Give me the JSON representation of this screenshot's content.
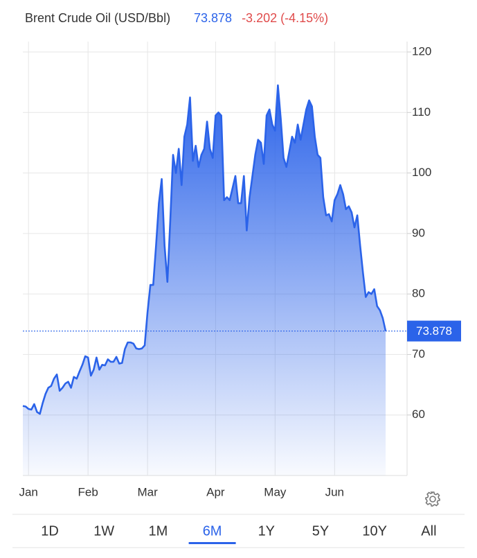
{
  "chart_data": {
    "type": "line",
    "title": "Brent Crude Oil (USD/Bbl)",
    "last_value": 73.878,
    "last_label": "73.878",
    "change": "-3.202 (-4.15%)",
    "color": "#2b63e9",
    "values": [
      61.5,
      61.4,
      61,
      60.9,
      61.8,
      60.5,
      60.2,
      62,
      63.5,
      64.5,
      64.8,
      66,
      66.7,
      64,
      64.5,
      65.2,
      65.5,
      64.5,
      66.3,
      66,
      67.2,
      68.3,
      69.7,
      69.5,
      66.5,
      67.5,
      69.5,
      67.5,
      68.3,
      68.2,
      69.2,
      68.8,
      68.8,
      69.6,
      68.5,
      68.6,
      70.9,
      72,
      72,
      71.8,
      71,
      70.9,
      71,
      71.5,
      77,
      81.5,
      81.5,
      88,
      95,
      99,
      88,
      82,
      92,
      103,
      100,
      104,
      98,
      106,
      108,
      112.5,
      102,
      104.5,
      101,
      103,
      104,
      108.5,
      104,
      102.5,
      109.5,
      110,
      109.5,
      95.5,
      96,
      95.5,
      97.5,
      99.5,
      95,
      95,
      99.5,
      90.5,
      96,
      99.5,
      103,
      105.5,
      105,
      101.5,
      109.5,
      110.5,
      108,
      107,
      114.5,
      109,
      102.5,
      101,
      103.5,
      106,
      105,
      108,
      105.5,
      108,
      110.5,
      112,
      111,
      106,
      103,
      102.5,
      96,
      93,
      93.2,
      92,
      95.5,
      96.5,
      98,
      96.5,
      94,
      94.5,
      93.5,
      91,
      93,
      88,
      83.5,
      79.5,
      80.3,
      80,
      80.8,
      78,
      77.3,
      76,
      73.878
    ],
    "xlim": [
      0,
      128
    ],
    "xticks": [
      {
        "value": 2,
        "label": "Jan"
      },
      {
        "value": 23,
        "label": "Feb"
      },
      {
        "value": 44,
        "label": "Mar"
      },
      {
        "value": 68,
        "label": "Apr"
      },
      {
        "value": 89,
        "label": "May"
      },
      {
        "value": 110,
        "label": "Jun"
      }
    ],
    "ylim": [
      50,
      120
    ],
    "yticks": [
      60,
      70,
      80,
      90,
      100,
      110,
      120
    ],
    "grid": true,
    "ranges": [
      "1D",
      "1W",
      "1M",
      "6M",
      "1Y",
      "5Y",
      "10Y",
      "All"
    ],
    "selected_range": 3
  }
}
